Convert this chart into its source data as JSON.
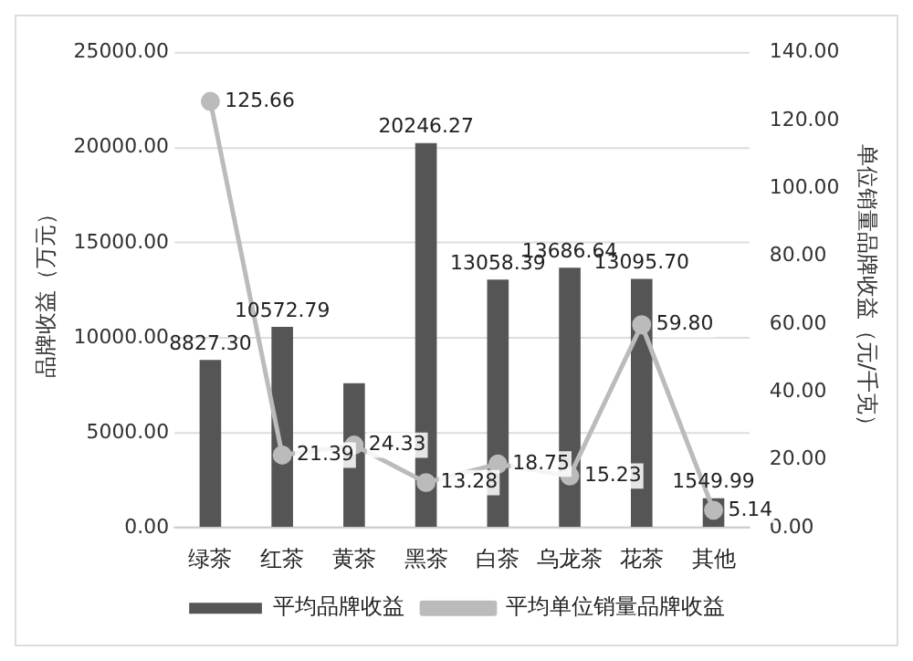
{
  "chart_data": {
    "type": "bar",
    "categories": [
      "绿茶",
      "红茶",
      "黄茶",
      "黑茶",
      "白茶",
      "乌龙茶",
      "花茶",
      "其他"
    ],
    "ylabel": "品牌收益（万元）",
    "y2label": "单位销量品牌收益（元/千克）",
    "series": [
      {
        "name": "平均品牌收益",
        "color": "#555555",
        "values": [
          8827.3,
          10572.79,
          7600,
          20246.27,
          13058.39,
          13686.64,
          13095.7,
          1549.99
        ],
        "value_labels": [
          "8827.30",
          "10572.79",
          null,
          "20246.27",
          "13058.39",
          "13686.64",
          "13095.70",
          "1549.99"
        ]
      },
      {
        "name": "平均单位销量品牌收益",
        "type": "line",
        "axis": "y2",
        "color": "#bbbbbb",
        "marker": "circle",
        "values": [
          125.66,
          21.39,
          24.33,
          13.28,
          18.75,
          15.23,
          59.8,
          5.14
        ],
        "value_labels": [
          "125.66",
          "21.39",
          "24.33",
          "13.28",
          "18.75",
          "15.23",
          "59.80",
          "5.14"
        ]
      }
    ],
    "ylim": [
      0,
      25000
    ],
    "yticks": [
      {
        "value": 0,
        "label": "0.00"
      },
      {
        "value": 5000,
        "label": "5000.00"
      },
      {
        "value": 10000,
        "label": "10000.00"
      },
      {
        "value": 15000,
        "label": "15000.00"
      },
      {
        "value": 20000,
        "label": "20000.00"
      },
      {
        "value": 25000,
        "label": "25000.00"
      }
    ],
    "y2lim": [
      0,
      140
    ],
    "y2ticks": [
      {
        "value": 0,
        "label": "0.00"
      },
      {
        "value": 20,
        "label": "20.00"
      },
      {
        "value": 40,
        "label": "40.00"
      },
      {
        "value": 60,
        "label": "60.00"
      },
      {
        "value": 80,
        "label": "80.00"
      },
      {
        "value": 100,
        "label": "100.00"
      },
      {
        "value": 120,
        "label": "120.00"
      },
      {
        "value": 140,
        "label": "140.00"
      }
    ],
    "grid": "y",
    "legend": "bottom"
  }
}
